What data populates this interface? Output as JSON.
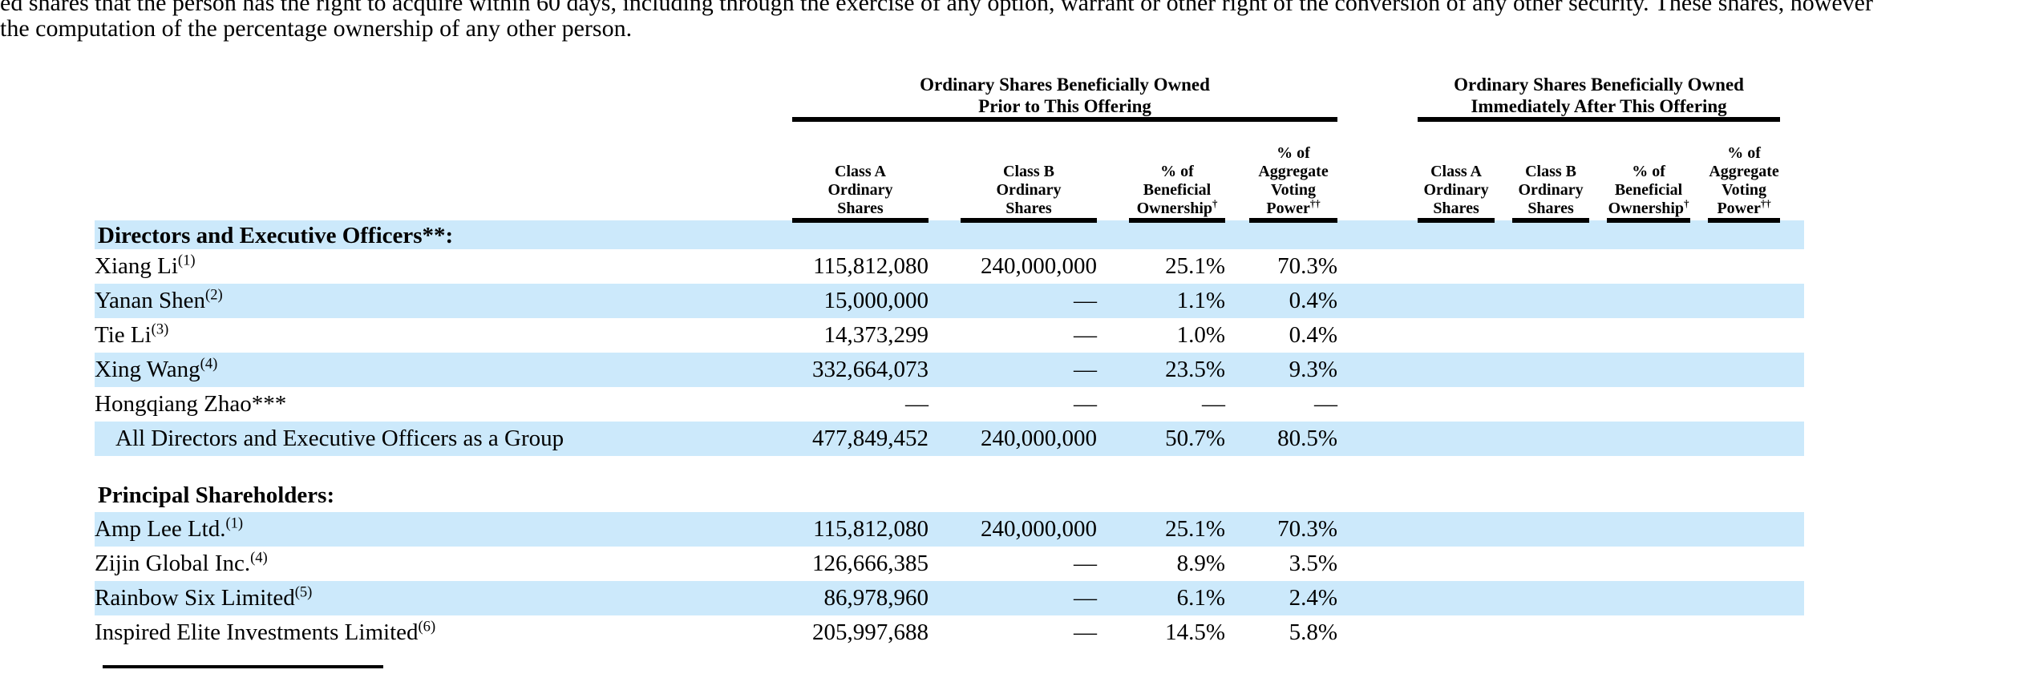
{
  "colors": {
    "stripe": "#cce9fb",
    "text": "#000000",
    "rule": "#000000"
  },
  "top_paragraph": {
    "line1": "ed shares that the person has the right to acquire within 60 days, including through the exercise of any option, warrant or other right of the conversion of any other security. These shares, however",
    "line2": "the computation of the percentage ownership of any other person."
  },
  "table": {
    "groups": [
      {
        "title": "Ordinary Shares Beneficially Owned\nPrior to This Offering",
        "columns": [
          {
            "lines": "Class A\nOrdinary\nShares",
            "sup": ""
          },
          {
            "lines": "Class B\nOrdinary\nShares",
            "sup": ""
          },
          {
            "lines": "% of\nBeneficial\nOwnership",
            "sup": "†"
          },
          {
            "lines": "% of\nAggregate\nVoting\nPower",
            "sup": "††"
          }
        ]
      },
      {
        "title": "Ordinary Shares Beneficially Owned\nImmediately After This Offering",
        "columns": [
          {
            "lines": "Class A\nOrdinary\nShares",
            "sup": ""
          },
          {
            "lines": "Class B\nOrdinary\nShares",
            "sup": ""
          },
          {
            "lines": "% of\nBeneficial\nOwnership",
            "sup": "†"
          },
          {
            "lines": "% of\nAggregate\nVoting\nPower",
            "sup": "††"
          }
        ]
      }
    ],
    "rows": [
      {
        "type": "section",
        "label": "Directors and Executive Officers**:",
        "shaded": true
      },
      {
        "type": "data",
        "name": "Xiang Li",
        "sup": "(1)",
        "indent": false,
        "shaded": false,
        "values": [
          "115,812,080",
          "240,000,000",
          "25.1%",
          "70.3%",
          "",
          "",
          "",
          ""
        ]
      },
      {
        "type": "data",
        "name": "Yanan Shen",
        "sup": "(2)",
        "indent": false,
        "shaded": true,
        "values": [
          "15,000,000",
          "—",
          "1.1%",
          "0.4%",
          "",
          "",
          "",
          ""
        ]
      },
      {
        "type": "data",
        "name": "Tie Li",
        "sup": "(3)",
        "indent": false,
        "shaded": false,
        "values": [
          "14,373,299",
          "—",
          "1.0%",
          "0.4%",
          "",
          "",
          "",
          ""
        ]
      },
      {
        "type": "data",
        "name": "Xing Wang",
        "sup": "(4)",
        "indent": false,
        "shaded": true,
        "values": [
          "332,664,073",
          "—",
          "23.5%",
          "9.3%",
          "",
          "",
          "",
          ""
        ]
      },
      {
        "type": "data",
        "name": "Hongqiang Zhao***",
        "sup": "",
        "indent": false,
        "shaded": false,
        "values": [
          "—",
          "—",
          "—",
          "—",
          "",
          "",
          "",
          ""
        ]
      },
      {
        "type": "data",
        "name": "All Directors and Executive Officers as a Group",
        "sup": "",
        "indent": true,
        "shaded": true,
        "values": [
          "477,849,452",
          "240,000,000",
          "50.7%",
          "80.5%",
          "",
          "",
          "",
          ""
        ]
      },
      {
        "type": "section-gap",
        "label": "Principal Shareholders:",
        "shaded": false
      },
      {
        "type": "data",
        "name": "Amp Lee Ltd.",
        "sup": "(1)",
        "indent": false,
        "shaded": true,
        "values": [
          "115,812,080",
          "240,000,000",
          "25.1%",
          "70.3%",
          "",
          "",
          "",
          ""
        ]
      },
      {
        "type": "data",
        "name": "Zijin Global Inc.",
        "sup": "(4)",
        "indent": false,
        "shaded": false,
        "values": [
          "126,666,385",
          "—",
          "8.9%",
          "3.5%",
          "",
          "",
          "",
          ""
        ]
      },
      {
        "type": "data",
        "name": "Rainbow Six Limited",
        "sup": "(5)",
        "indent": false,
        "shaded": true,
        "values": [
          "86,978,960",
          "—",
          "6.1%",
          "2.4%",
          "",
          "",
          "",
          ""
        ]
      },
      {
        "type": "data",
        "name": "Inspired Elite Investments Limited",
        "sup": "(6)",
        "indent": false,
        "shaded": false,
        "values": [
          "205,997,688",
          "—",
          "14.5%",
          "5.8%",
          "",
          "",
          "",
          ""
        ]
      }
    ]
  }
}
